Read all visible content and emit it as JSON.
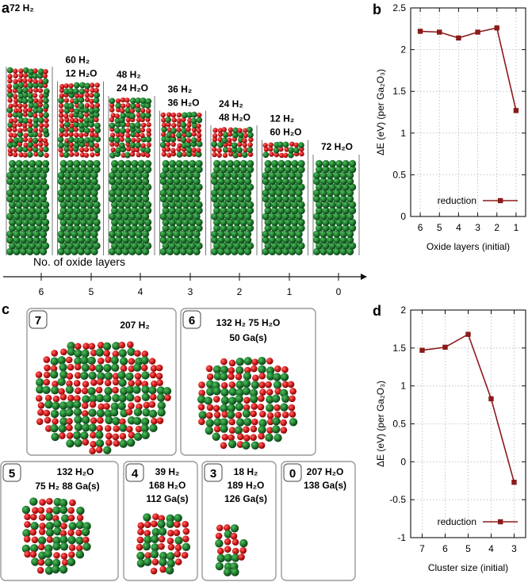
{
  "panel_letters": {
    "a": "a",
    "b": "b",
    "c": "c",
    "d": "d"
  },
  "panel_a": {
    "slabs": [
      {
        "lines": [
          "72 H₂"
        ],
        "oxide_layers": 6
      },
      {
        "lines": [
          "60 H₂",
          "12 H₂O"
        ],
        "oxide_layers": 5
      },
      {
        "lines": [
          "48 H₂",
          "24 H₂O"
        ],
        "oxide_layers": 4
      },
      {
        "lines": [
          "36 H₂",
          "36 H₂O"
        ],
        "oxide_layers": 3
      },
      {
        "lines": [
          "24 H₂",
          "48 H₂O"
        ],
        "oxide_layers": 2
      },
      {
        "lines": [
          "12 H₂",
          "60 H₂O"
        ],
        "oxide_layers": 1
      },
      {
        "lines": [
          "72 H₂O"
        ],
        "oxide_layers": 0
      }
    ],
    "axis_title": "No. of oxide layers",
    "axis_ticks": [
      "6",
      "5",
      "4",
      "3",
      "2",
      "1",
      "0"
    ]
  },
  "panel_c": {
    "boxes": [
      {
        "num": "7",
        "lines": [
          "207 H₂"
        ],
        "cluster_size": 1.0
      },
      {
        "num": "6",
        "lines": [
          "132 H₂   75 H₂O",
          "50 Ga(s)"
        ],
        "cluster_size": 0.9
      },
      {
        "num": "5",
        "lines": [
          "132 H₂O",
          "75 H₂   88 Ga(s)"
        ],
        "cluster_size": 0.72
      },
      {
        "num": "4",
        "lines": [
          "39 H₂",
          "168 H₂O",
          "112 Ga(s)"
        ],
        "cluster_size": 0.55
      },
      {
        "num": "3",
        "lines": [
          "18 H₂",
          "189 H₂O",
          "126 Ga(s)"
        ],
        "cluster_size": 0.4
      },
      {
        "num": "0",
        "lines": [
          "207 H₂O",
          "138 Ga(s)"
        ],
        "cluster_size": 0
      }
    ]
  },
  "chart_data": [
    {
      "type": "line",
      "panel": "b",
      "categories": [
        "6",
        "5",
        "4",
        "3",
        "2",
        "1"
      ],
      "series": [
        {
          "name": "reduction",
          "values": [
            2.22,
            2.21,
            2.14,
            2.21,
            2.26,
            1.27
          ]
        }
      ],
      "xlabel": "Oxide layers (initial)",
      "ylabel": "ΔE (eV) (per Ga₂O₃)",
      "ylim": [
        0,
        2.5
      ],
      "yticks": [
        "0",
        "0.5",
        "1",
        "1.5",
        "2",
        "2.5"
      ],
      "grid": true,
      "legend": "bottom-right",
      "color": "#8b1a1a"
    },
    {
      "type": "line",
      "panel": "d",
      "categories": [
        "7",
        "6",
        "5",
        "4",
        "3"
      ],
      "series": [
        {
          "name": "reduction",
          "values": [
            1.47,
            1.51,
            1.68,
            0.83,
            -0.27
          ]
        }
      ],
      "xlabel": "Cluster size (initial)",
      "ylabel": "ΔE (eV) (per Ga₂O₃)",
      "ylim": [
        -1,
        2
      ],
      "yticks": [
        "-1",
        "-0.5",
        "0",
        "0.5",
        "1",
        "1.5",
        "2"
      ],
      "grid": true,
      "legend": "bottom-right",
      "color": "#8b1a1a"
    }
  ],
  "colors": {
    "ga": "#1f7a2e",
    "ga_dark": "#10501c",
    "o": "#d01818",
    "line": "#8b1a1a",
    "grid": "#b8b8b8",
    "box": "#999999"
  }
}
